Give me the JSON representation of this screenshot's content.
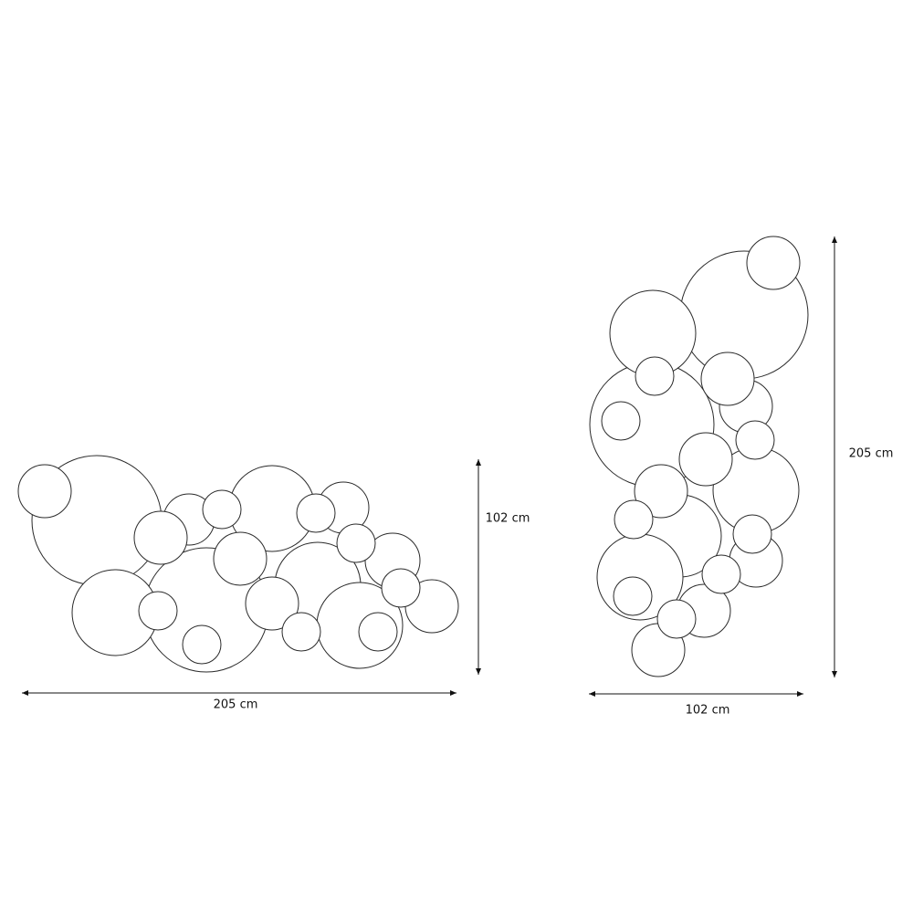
{
  "horizontal_view": {
    "width_label": "205 cm",
    "height_label": "102 cm"
  },
  "vertical_view": {
    "width_label": "102 cm",
    "height_label": "205 cm"
  },
  "colors": {
    "line": "#2a2a2a",
    "background": "#ffffff"
  }
}
